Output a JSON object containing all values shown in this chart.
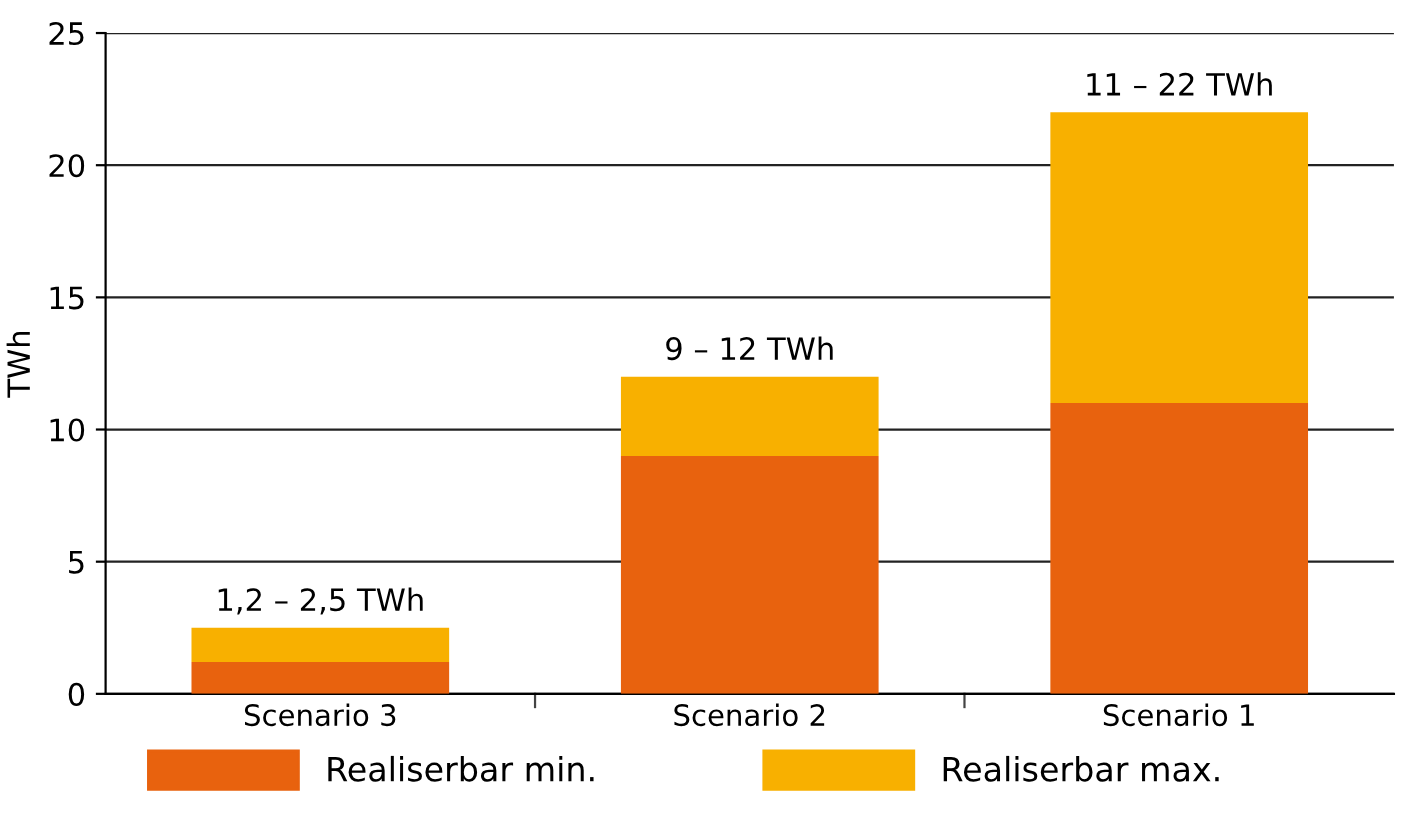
{
  "chart_data": {
    "type": "bar",
    "ylabel": "TWh",
    "categories": [
      "Scenario 3",
      "Scenario 2",
      "Scenario 1"
    ],
    "stacked": true,
    "series": [
      {
        "name": "Realiserbar min.",
        "color": "#e8620e",
        "values": [
          1.2,
          9,
          11
        ]
      },
      {
        "name": "Realiserbar max.",
        "color": "#f8b000",
        "values": [
          1.3,
          3,
          11
        ]
      }
    ],
    "totals": [
      "1,2 – 2,5 TWh",
      "9 – 12 TWh",
      "11 – 22 TWh"
    ],
    "ylim": [
      0,
      25
    ],
    "yticks": [
      0,
      5,
      10,
      15,
      20,
      25
    ],
    "grid": "y",
    "legend": "bottom"
  }
}
